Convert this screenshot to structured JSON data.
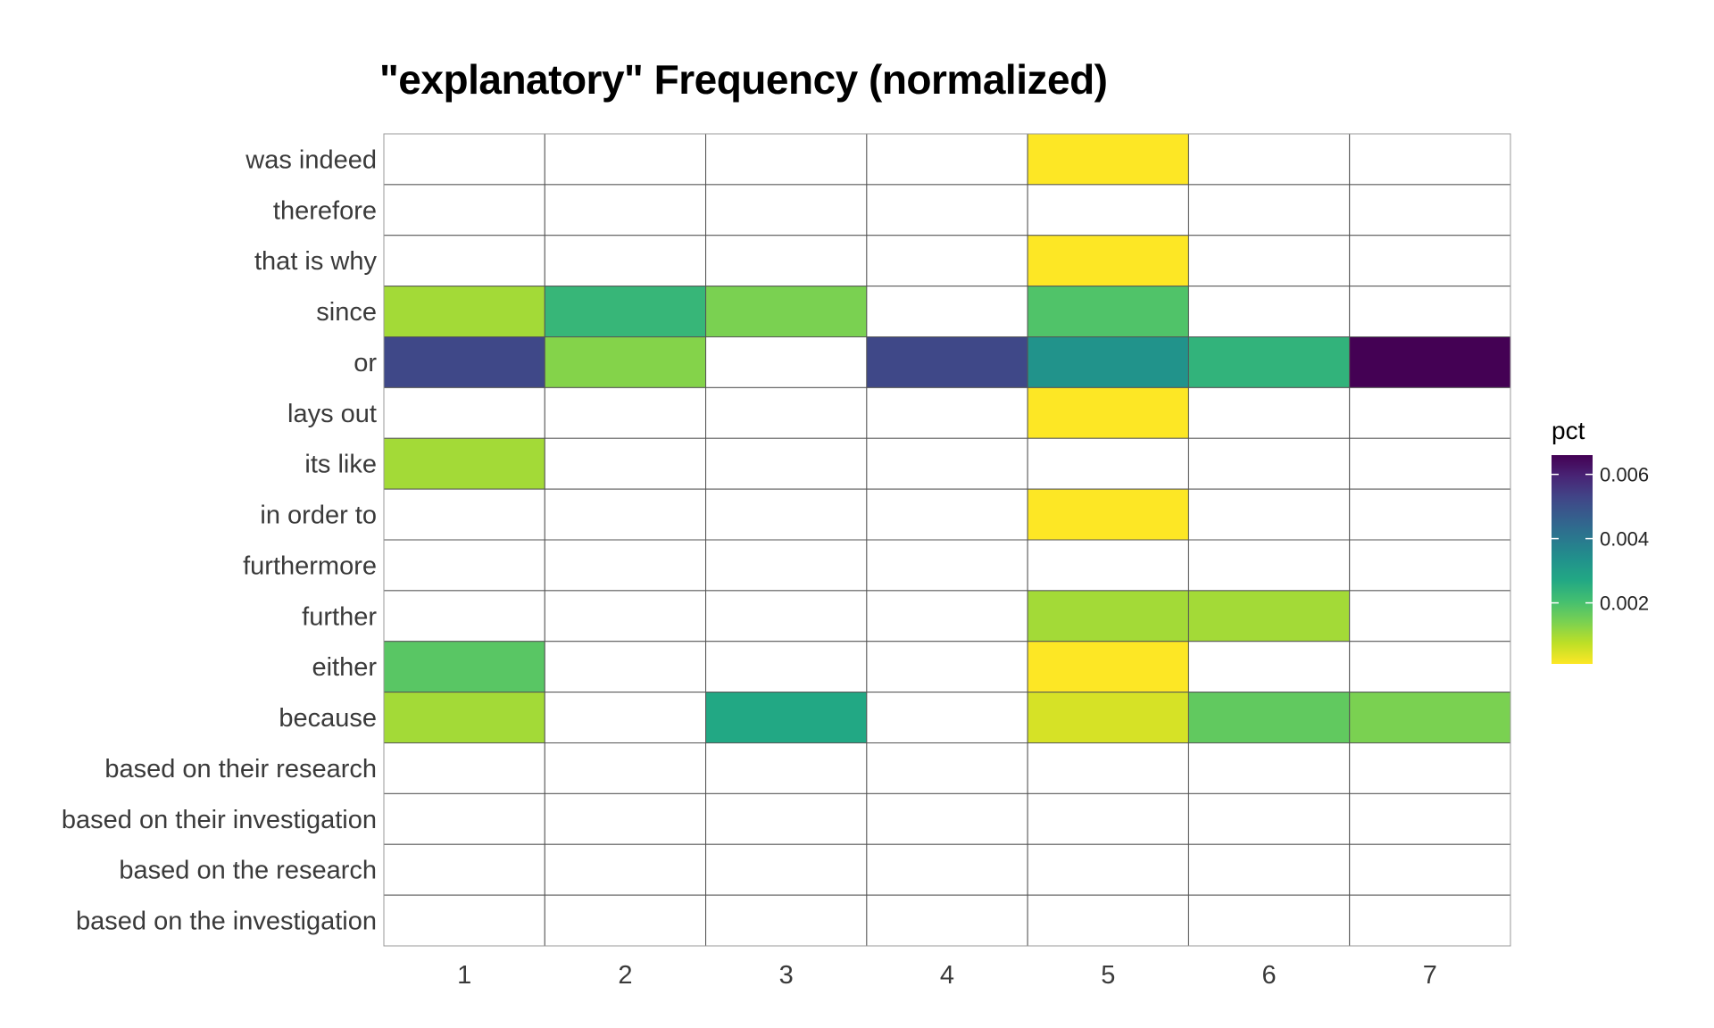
{
  "chart_data": {
    "type": "heatmap",
    "title": "\"explanatory\" Frequency (normalized)",
    "xlabel": "",
    "ylabel": "",
    "x": [
      "1",
      "2",
      "3",
      "4",
      "5",
      "6",
      "7"
    ],
    "y": [
      "was indeed",
      "therefore",
      "that is why",
      "since",
      "or",
      "lays out",
      "its like",
      "in order to",
      "furthermore",
      "further",
      "either",
      "because",
      "based on their research",
      "based on their investigation",
      "based on the research",
      "based on the investigation"
    ],
    "values": [
      [
        null,
        null,
        null,
        null,
        0.0001,
        null,
        null
      ],
      [
        null,
        null,
        null,
        null,
        null,
        null,
        null
      ],
      [
        null,
        null,
        null,
        null,
        0.0001,
        null,
        null
      ],
      [
        0.001,
        0.0023,
        0.0014,
        null,
        0.0019,
        null,
        null
      ],
      [
        0.0052,
        0.0013,
        null,
        0.0052,
        0.0033,
        0.0024,
        0.0066
      ],
      [
        null,
        null,
        null,
        null,
        0.0001,
        null,
        null
      ],
      [
        0.001,
        null,
        null,
        null,
        null,
        null,
        null
      ],
      [
        null,
        null,
        null,
        null,
        0.0001,
        null,
        null
      ],
      [
        null,
        null,
        null,
        null,
        null,
        null,
        null
      ],
      [
        null,
        null,
        null,
        null,
        0.001,
        0.001,
        null
      ],
      [
        0.0018,
        null,
        null,
        null,
        0.0001,
        null,
        null
      ],
      [
        0.001,
        null,
        0.0027,
        null,
        0.0005,
        0.0017,
        0.0014
      ],
      [
        null,
        null,
        null,
        null,
        null,
        null,
        null
      ],
      [
        null,
        null,
        null,
        null,
        null,
        null,
        null
      ],
      [
        null,
        null,
        null,
        null,
        null,
        null,
        null
      ],
      [
        null,
        null,
        null,
        null,
        null,
        null,
        null
      ]
    ],
    "legend": {
      "title": "pct",
      "placement": "right",
      "range": [
        0.0001,
        0.0066
      ],
      "ticks": [
        0.002,
        0.004,
        0.006
      ],
      "tick_labels": [
        "0.002",
        "0.004",
        "0.006"
      ],
      "colormap": "viridis (reversed: low = yellow, high = purple)"
    },
    "grid": false,
    "empty_cell_color": "#ffffff",
    "cell_border_color": "#555555"
  }
}
